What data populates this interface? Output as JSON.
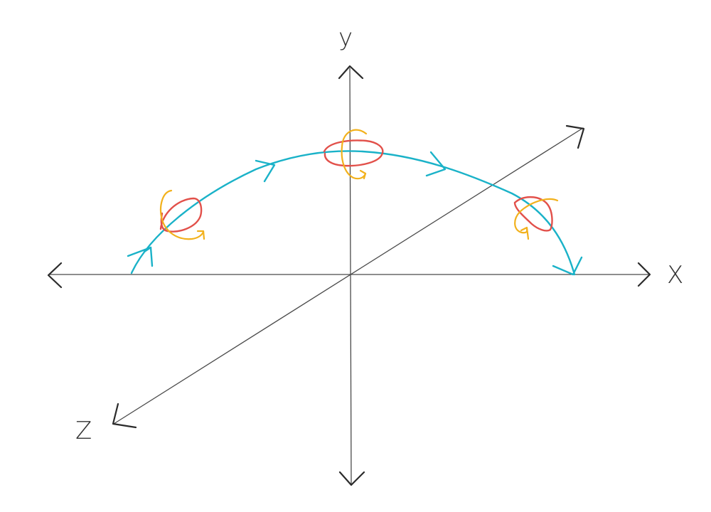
{
  "axes": {
    "x_label": "X",
    "y_label": "y",
    "z_label": "Z"
  },
  "colors": {
    "axis": "#4a4a4a",
    "trajectory": "#1ab2c8",
    "ring": "#e2504a",
    "rotation": "#f2b11c"
  },
  "icons": {
    "trajectory_arrow": "arrow-head",
    "rotation_marker": "circular-arrow-icon"
  }
}
